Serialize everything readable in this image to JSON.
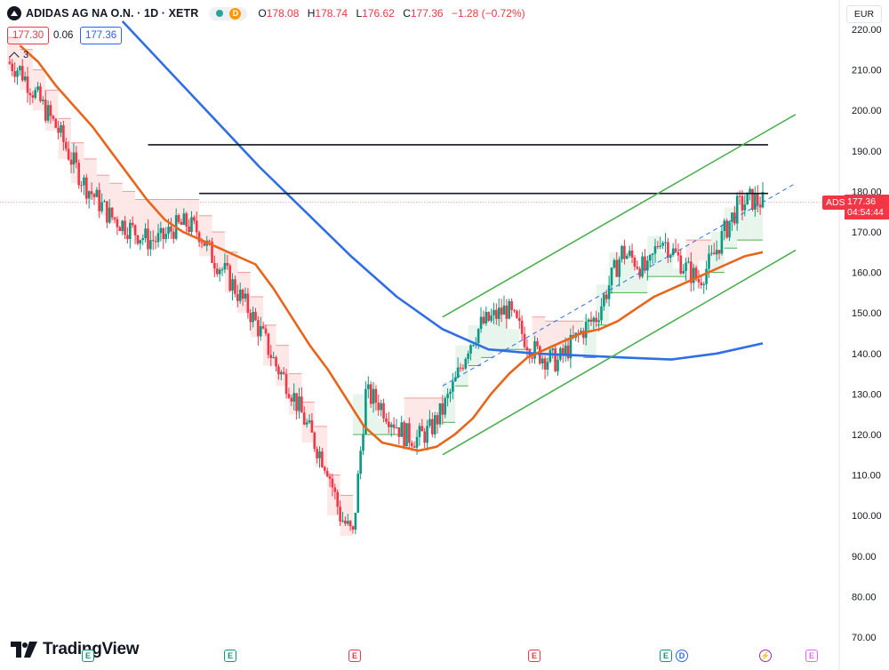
{
  "header": {
    "symbol": "ADIDAS AG NA O.N. · 1D · XETR",
    "dividend_badge": "D",
    "ohlc": {
      "o_label": "O",
      "o": "178.08",
      "h_label": "H",
      "h": "178.74",
      "l_label": "L",
      "l": "176.62",
      "c_label": "C",
      "c": "177.36",
      "change": "−1.28 (−0.72%)"
    }
  },
  "bid_ask": {
    "sell": "177.30",
    "spread": "0.06",
    "buy": "177.36"
  },
  "indicators_collapsed_count": "3",
  "currency": "EUR",
  "last_price_tag": {
    "symbol": "ADS",
    "price": "177.36",
    "countdown": "04:54:44"
  },
  "branding": {
    "name": "TradingView"
  },
  "events": [
    {
      "type": "earnings",
      "letter": "E"
    },
    {
      "type": "earnings",
      "letter": "E"
    },
    {
      "type": "earnings",
      "letter": "E"
    },
    {
      "type": "earnings",
      "letter": "E"
    },
    {
      "type": "earnings",
      "letter": "E"
    },
    {
      "type": "dividend",
      "letter": "D"
    },
    {
      "type": "split",
      "letter": "⚡"
    },
    {
      "type": "earnings",
      "letter": "E"
    }
  ],
  "colors": {
    "up": "#089981",
    "down": "#f23645",
    "ma_fast": "#e8661c",
    "ma_slow": "#2f6fe3",
    "channel": "#4caf50",
    "resistance": "#131722",
    "stop_up_fill": "#e6f4ea",
    "stop_down_fill": "#fde4e4"
  },
  "chart_data": {
    "type": "candlestick",
    "y_axis_ticks": [
      "220.00",
      "210.00",
      "200.00",
      "190.00",
      "180.00",
      "170.00",
      "160.00",
      "150.00",
      "140.00",
      "130.00",
      "120.00",
      "110.00",
      "100.00",
      "90.00",
      "80.00",
      "70.00"
    ],
    "ylim": [
      70,
      220
    ],
    "series": [
      {
        "kind": "candles",
        "approx_closes": [
          212,
          210,
          205,
          200,
          195,
          188,
          182,
          178,
          174,
          172,
          170,
          168,
          168,
          171,
          172,
          170,
          164,
          160,
          155,
          150,
          144,
          137,
          132,
          125,
          118,
          112,
          100,
          95,
          130,
          128,
          124,
          120,
          119,
          121,
          126,
          133,
          142,
          147,
          149,
          151,
          146,
          141,
          139,
          138,
          142,
          146,
          149,
          157,
          165,
          163,
          160,
          169,
          165,
          161,
          158,
          163,
          170,
          176,
          178,
          177.36
        ]
      },
      {
        "kind": "ma_fast",
        "approx_values": [
          216,
          212,
          206,
          201,
          196,
          190,
          184,
          178,
          173,
          170,
          168,
          166,
          164,
          162,
          156,
          149,
          142,
          136,
          129,
          122,
          118,
          117,
          116,
          117,
          120,
          124,
          130,
          135,
          139,
          141,
          143,
          145,
          146,
          148,
          151,
          154,
          156,
          158,
          160,
          162,
          164,
          165
        ]
      },
      {
        "kind": "ma_slow",
        "approx_values": [
          222,
          210,
          198,
          186,
          175,
          164,
          154,
          146,
          141,
          140,
          139.5,
          139,
          138.5,
          140,
          142.5
        ]
      },
      {
        "kind": "resistance",
        "values": [
          191.5,
          179.5
        ]
      },
      {
        "kind": "channel_lower",
        "values": [
          115,
          165.5
        ]
      },
      {
        "kind": "channel_upper",
        "values": [
          149,
          199
        ]
      },
      {
        "kind": "channel_mid",
        "values": [
          132,
          182
        ]
      }
    ]
  }
}
